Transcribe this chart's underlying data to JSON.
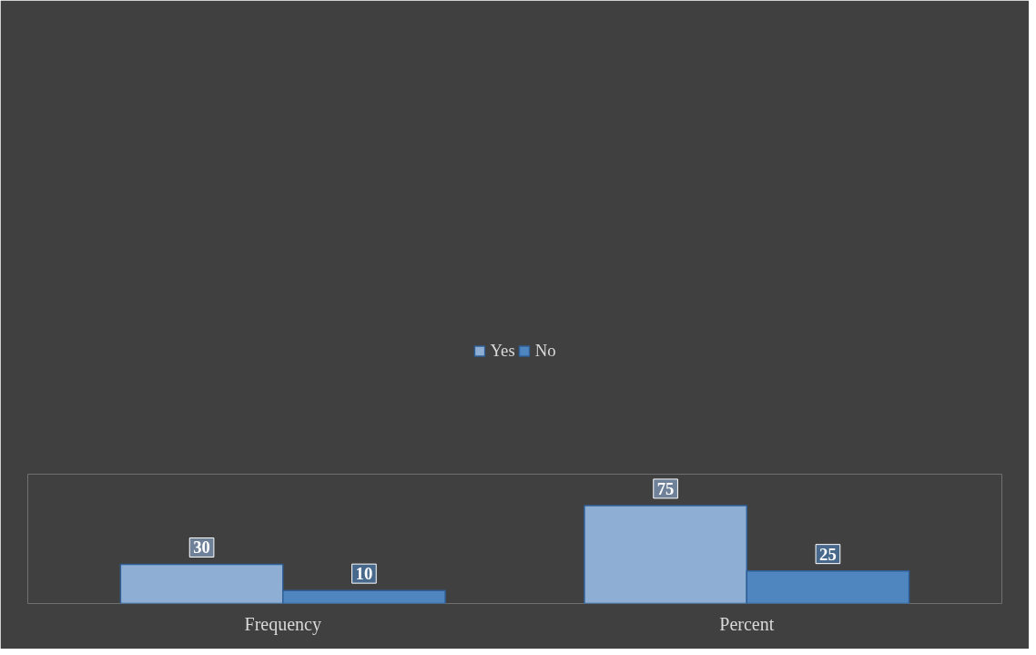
{
  "chart_data": {
    "type": "bar",
    "categories": [
      "Frequency",
      "Percent"
    ],
    "series": [
      {
        "name": "Yes",
        "color": "#8eaed4",
        "values": [
          30,
          75
        ]
      },
      {
        "name": "No",
        "color": "#4f86c0",
        "values": [
          10,
          25
        ]
      }
    ],
    "data_labels": true,
    "legend": "top",
    "grid": false
  }
}
